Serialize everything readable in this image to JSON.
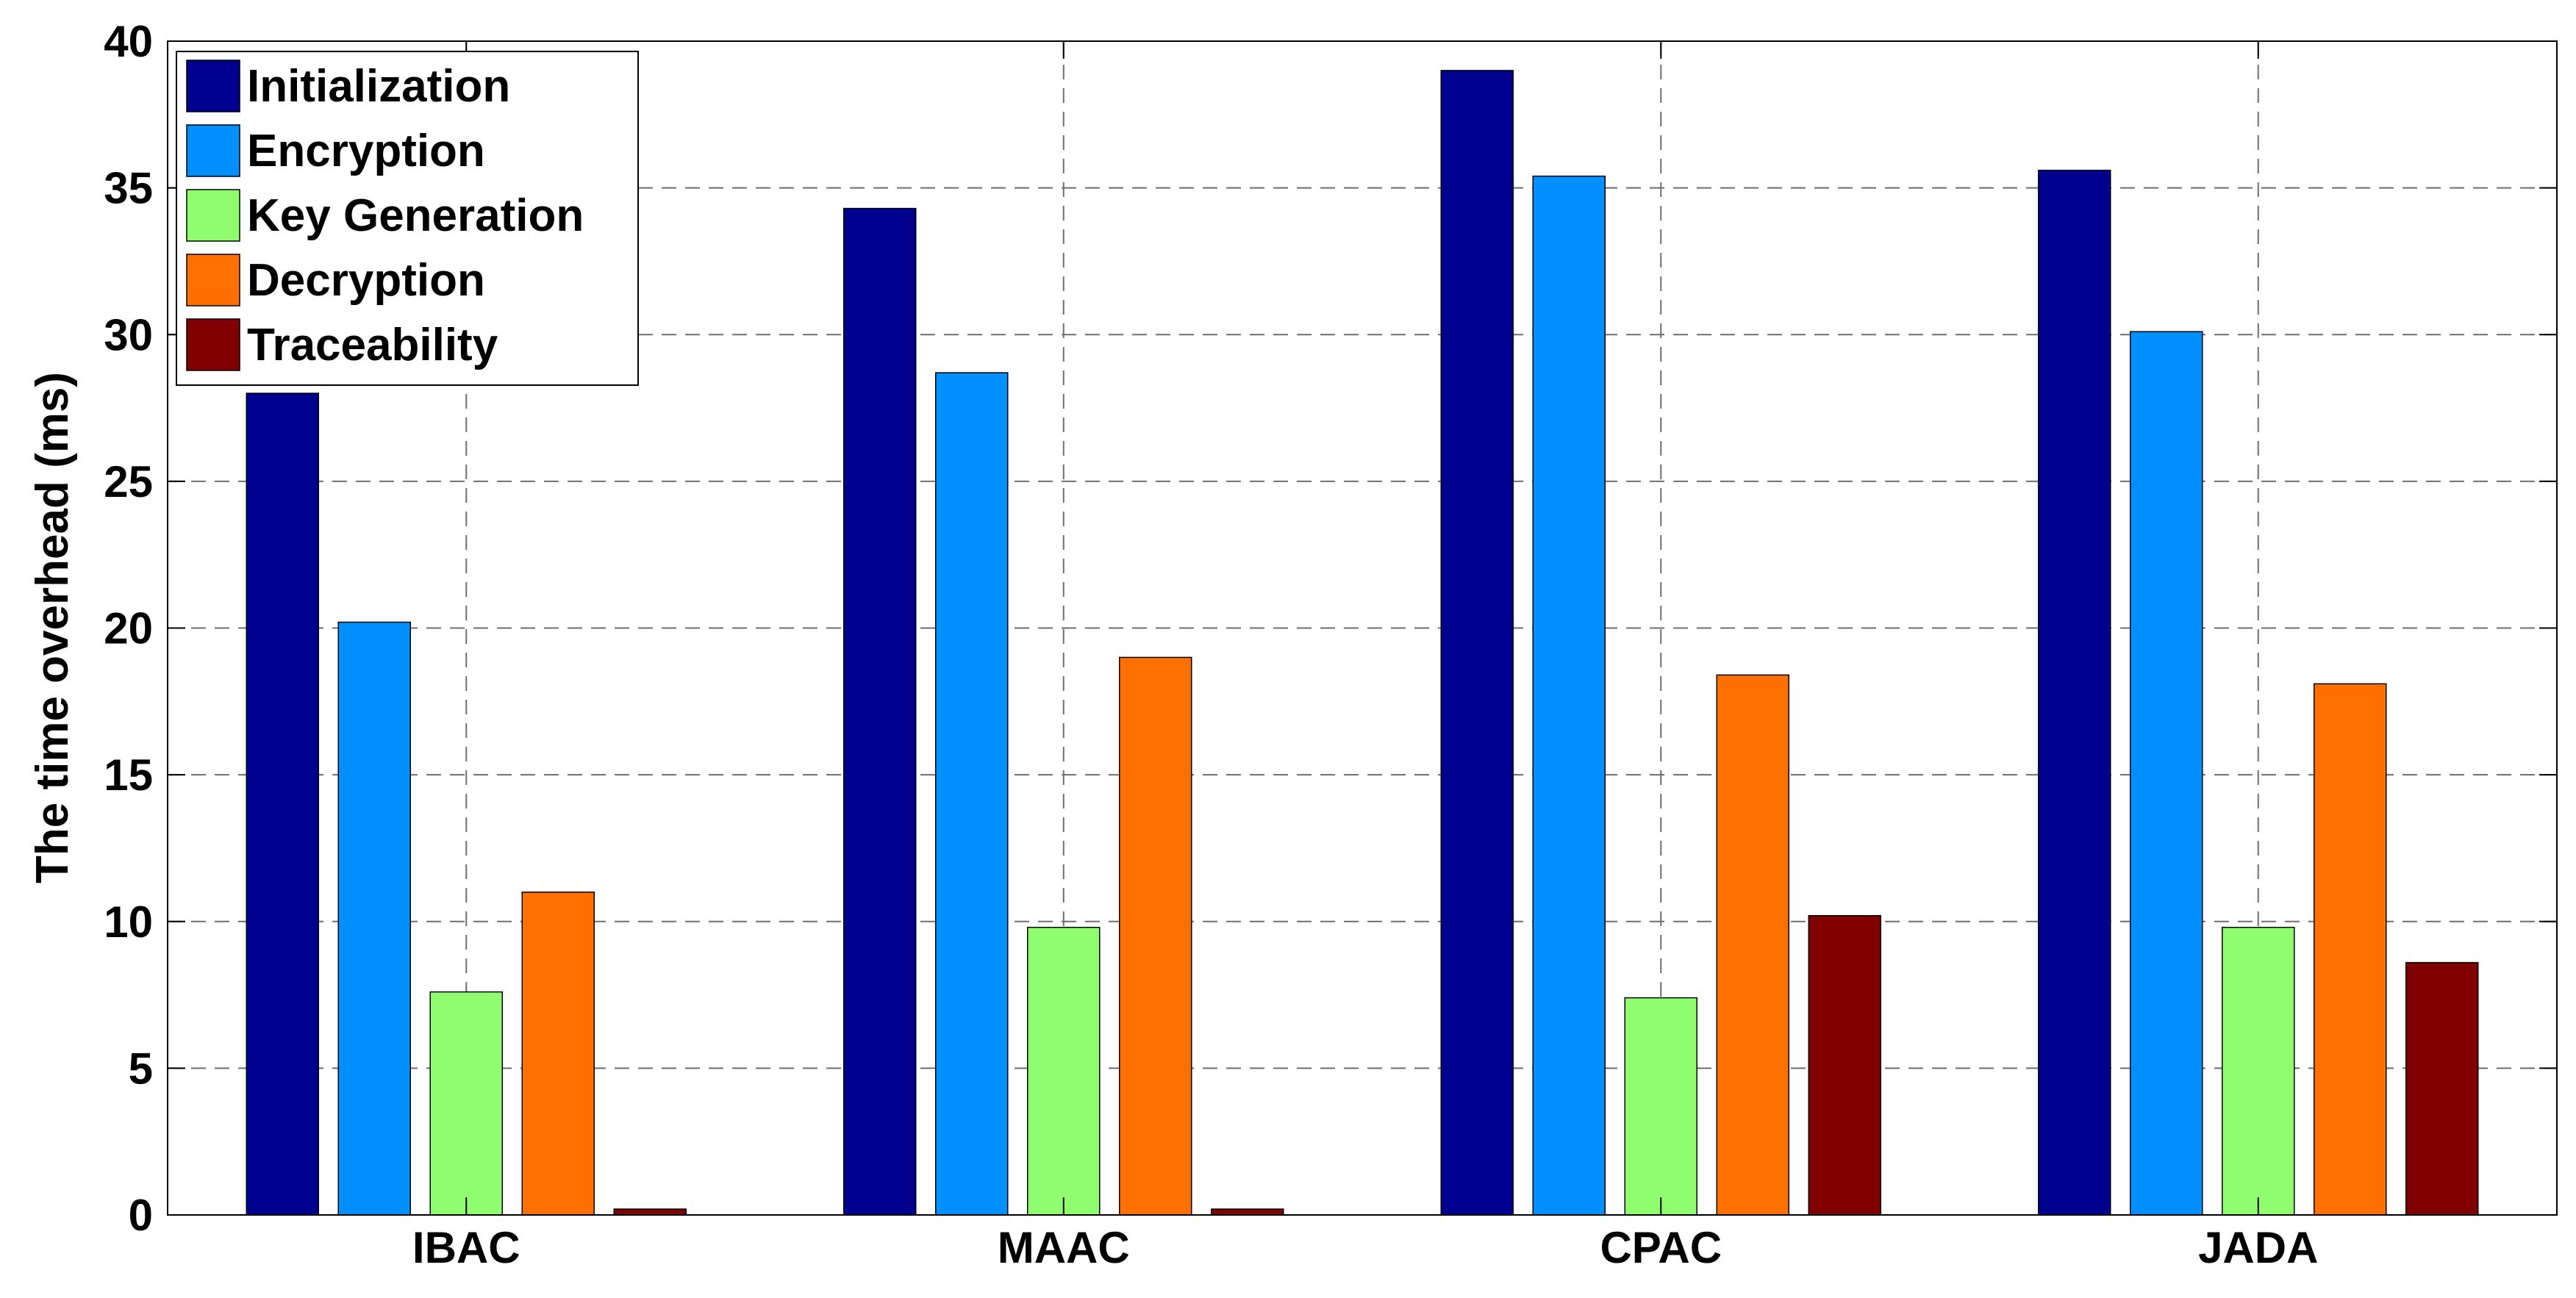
{
  "chart_data": {
    "type": "bar",
    "title": "",
    "xlabel": "",
    "ylabel": "The time overhead (ms)",
    "categories": [
      "IBAC",
      "MAAC",
      "CPAC",
      "JADA"
    ],
    "ylim": [
      0,
      40
    ],
    "yticks": [
      0,
      5,
      10,
      15,
      20,
      25,
      30,
      35,
      40
    ],
    "grid": true,
    "legend_position": "top-left",
    "series": [
      {
        "name": "Initialization",
        "color": "#00008F",
        "values": [
          28.0,
          34.3,
          39.0,
          35.6
        ]
      },
      {
        "name": "Encryption",
        "color": "#0090FF",
        "values": [
          20.2,
          28.7,
          35.4,
          30.1
        ]
      },
      {
        "name": "Key Generation",
        "color": "#8FFF70",
        "values": [
          7.6,
          9.8,
          7.4,
          9.8
        ]
      },
      {
        "name": "Decryption",
        "color": "#FF7000",
        "values": [
          11.0,
          19.0,
          18.4,
          18.1
        ]
      },
      {
        "name": "Traceability",
        "color": "#800000",
        "values": [
          0.2,
          0.2,
          10.2,
          8.6
        ]
      }
    ]
  }
}
